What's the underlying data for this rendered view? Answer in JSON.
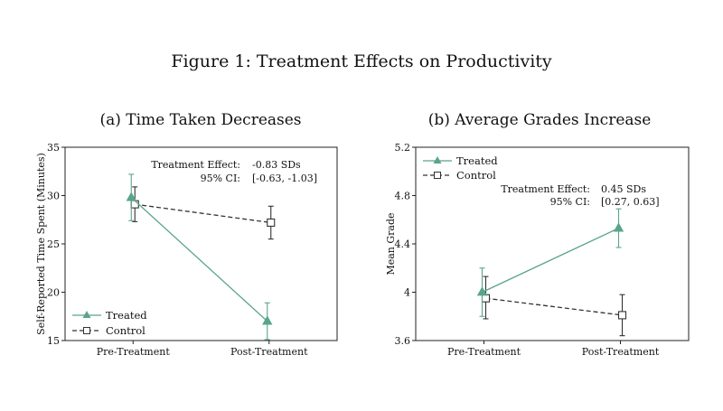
{
  "figure_title": "Figure 1: Treatment Effects on Productivity",
  "colors": {
    "treated": "#5aa58a",
    "control": "#333333",
    "frame": "#222222"
  },
  "chart_data": [
    {
      "type": "line",
      "title": "(a) Time Taken Decreases",
      "xlabel": "",
      "ylabel": "Self-Reported Time Spent (Minutes)",
      "categories": [
        "Pre-Treatment",
        "Post-Treatment"
      ],
      "ylim": [
        15,
        35
      ],
      "yticks": [
        15,
        20,
        25,
        30,
        35
      ],
      "ytick_labels": [
        "15",
        "20",
        "25",
        "30",
        "35"
      ],
      "series": [
        {
          "name": "Treated",
          "marker": "triangle",
          "dash": false,
          "values": [
            29.8,
            17.0
          ],
          "ci_low": [
            27.4,
            15.1
          ],
          "ci_high": [
            32.2,
            18.9
          ]
        },
        {
          "name": "Control",
          "marker": "square",
          "dash": true,
          "values": [
            29.1,
            27.2
          ],
          "ci_low": [
            27.3,
            25.5
          ],
          "ci_high": [
            30.9,
            28.9
          ]
        }
      ],
      "annotation": {
        "line1_label": "Treatment Effect:",
        "line1_value": "-0.83 SDs",
        "line2_label": "95% CI:",
        "line2_value": "[-0.63, -1.03]"
      },
      "legend_position": "bottom-left"
    },
    {
      "type": "line",
      "title": "(b) Average Grades Increase",
      "xlabel": "",
      "ylabel": "Mean Grade",
      "categories": [
        "Pre-Treatment",
        "Post-Treatment"
      ],
      "ylim": [
        3.6,
        5.2
      ],
      "yticks": [
        3.6,
        4.0,
        4.4,
        4.8,
        5.2
      ],
      "ytick_labels": [
        "3.6",
        "4",
        "4.4",
        "4.8",
        "5.2"
      ],
      "series": [
        {
          "name": "Treated",
          "marker": "triangle",
          "dash": false,
          "values": [
            4.0,
            4.53
          ],
          "ci_low": [
            3.8,
            4.37
          ],
          "ci_high": [
            4.2,
            4.69
          ]
        },
        {
          "name": "Control",
          "marker": "square",
          "dash": true,
          "values": [
            3.95,
            3.81
          ],
          "ci_low": [
            3.78,
            3.64
          ],
          "ci_high": [
            4.13,
            3.98
          ]
        }
      ],
      "annotation": {
        "line1_label": "Treatment Effect:",
        "line1_value": "0.45 SDs",
        "line2_label": "95% CI:",
        "line2_value": "[0.27, 0.63]"
      },
      "legend_position": "top-left"
    }
  ]
}
